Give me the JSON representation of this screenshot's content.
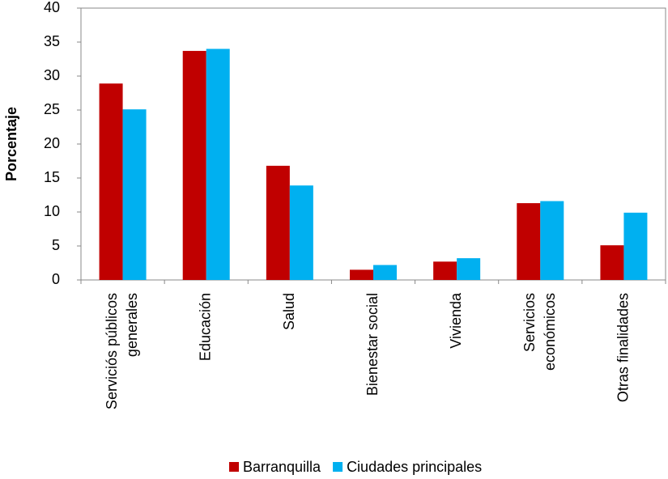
{
  "chart_data": {
    "type": "bar",
    "y_label": "Porcentaje",
    "categories": [
      "Serviciós públicos\ngenerales",
      "Educación",
      "Salud",
      "Bienestar social",
      "Vivienda",
      "Servicios\neconómicos",
      "Otras finalidades"
    ],
    "series": [
      {
        "name": "Barranquilla",
        "color": "#c00000",
        "values": [
          28.9,
          33.7,
          16.8,
          1.5,
          2.7,
          11.3,
          5.1
        ]
      },
      {
        "name": "Ciudades principales",
        "color": "#00b0f0",
        "values": [
          25.1,
          34.0,
          13.9,
          2.2,
          3.2,
          11.6,
          9.9
        ]
      }
    ],
    "ylim": [
      0,
      40
    ],
    "yticks": [
      0,
      5,
      10,
      15,
      20,
      25,
      30,
      35,
      40
    ],
    "grid": false,
    "legend": "bottom"
  }
}
